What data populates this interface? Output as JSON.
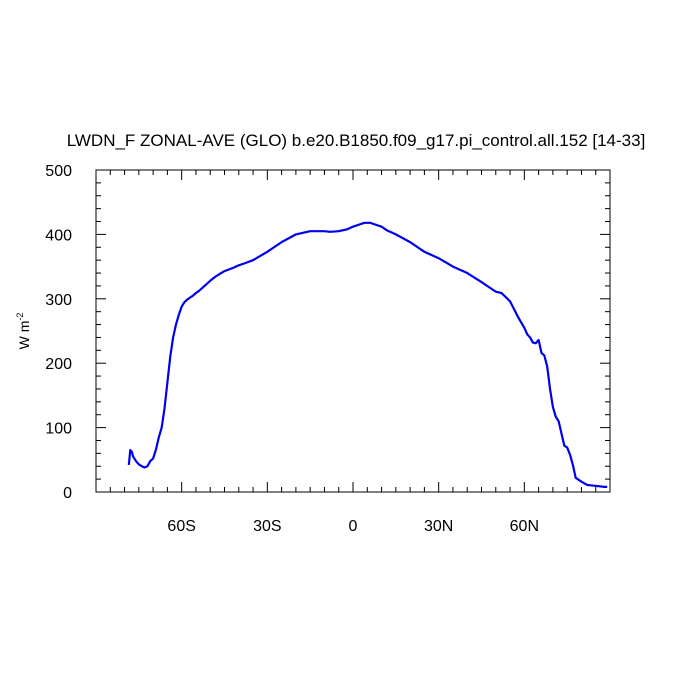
{
  "chart_data": {
    "type": "line",
    "title": "LWDN_F ZONAL-AVE (GLO) b.e20.B1850.f09_g17.pi_control.all.152 [14-33]",
    "ylabel": "W m",
    "ylabel_exponent": "-2",
    "xlabel": "",
    "xlim": [
      -90,
      90
    ],
    "ylim": [
      0,
      500
    ],
    "x_ticks": [
      {
        "value": -60,
        "label": "60S"
      },
      {
        "value": -30,
        "label": "30S"
      },
      {
        "value": 0,
        "label": "0"
      },
      {
        "value": 30,
        "label": "30N"
      },
      {
        "value": 60,
        "label": "60N"
      }
    ],
    "y_ticks": [
      {
        "value": 0,
        "label": "0"
      },
      {
        "value": 100,
        "label": "100"
      },
      {
        "value": 200,
        "label": "200"
      },
      {
        "value": 300,
        "label": "300"
      },
      {
        "value": 400,
        "label": "400"
      },
      {
        "value": 500,
        "label": "500"
      }
    ],
    "grid": false,
    "series": [
      {
        "color": "#0000ee",
        "x": [
          -78.5,
          -78,
          -77.5,
          -77,
          -76,
          -75,
          -74,
          -73,
          -72,
          -71,
          -70,
          -69,
          -68,
          -67,
          -66,
          -65,
          -64,
          -63,
          -62,
          -61,
          -60,
          -59,
          -58,
          -57,
          -56,
          -55,
          -54,
          -52,
          -50,
          -48,
          -45,
          -42,
          -40,
          -38,
          -35,
          -30,
          -25,
          -20,
          -15,
          -10,
          -8,
          -5,
          -2,
          0,
          2,
          4,
          6,
          8,
          10,
          12,
          15,
          20,
          25,
          30,
          35,
          40,
          45,
          48,
          50,
          52,
          55,
          58,
          60,
          61,
          62,
          63,
          64,
          65,
          66,
          67,
          68,
          69,
          70,
          71,
          72,
          74,
          75,
          76,
          77,
          78,
          80,
          82,
          84,
          86,
          88,
          89
        ],
        "y": [
          42,
          65,
          63,
          55,
          48,
          43,
          40,
          38,
          40,
          48,
          52,
          66,
          85,
          100,
          130,
          170,
          210,
          240,
          260,
          275,
          288,
          295,
          299,
          302,
          305,
          309,
          312,
          320,
          328,
          335,
          343,
          348,
          352,
          355,
          360,
          373,
          388,
          400,
          405,
          405,
          404,
          405,
          408,
          412,
          415,
          418,
          418,
          415,
          412,
          406,
          400,
          388,
          373,
          363,
          350,
          340,
          326,
          317,
          311,
          309,
          296,
          270,
          255,
          245,
          240,
          232,
          231,
          236,
          216,
          212,
          195,
          160,
          132,
          117,
          110,
          72,
          69,
          58,
          42,
          22,
          16,
          11,
          10,
          9,
          8,
          8
        ]
      }
    ]
  }
}
